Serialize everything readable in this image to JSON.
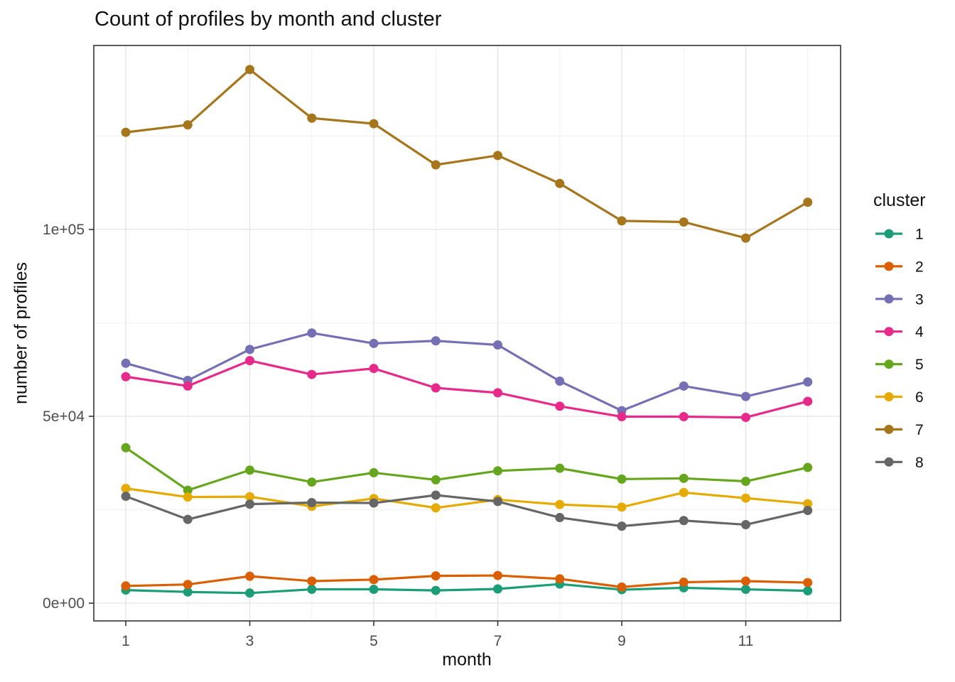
{
  "chart_data": {
    "type": "line",
    "title": "Count of profiles by month and cluster",
    "xlabel": "month",
    "ylabel": "number of profiles",
    "legend_title": "cluster",
    "legend_position": "right",
    "grid": "on",
    "marker": "circle",
    "x": [
      1,
      2,
      3,
      4,
      5,
      6,
      7,
      8,
      9,
      10,
      11,
      12
    ],
    "x_ticks": {
      "values": [
        1,
        3,
        5,
        7,
        9,
        11
      ],
      "labels": [
        "1",
        "3",
        "5",
        "7",
        "9",
        "11"
      ]
    },
    "x_minor_ticks": [
      2,
      4,
      6,
      8,
      10,
      12
    ],
    "y_ticks": {
      "values": [
        0,
        50000,
        100000
      ],
      "labels": [
        "0e+00",
        "5e+04",
        "1e+05"
      ]
    },
    "y_minor_ticks": [
      25000,
      75000,
      125000
    ],
    "xlim": [
      0.484,
      12.53
    ],
    "ylim": [
      -4753,
      149239
    ],
    "series": [
      {
        "name": "1",
        "color": "#1B9E77",
        "values": [
          3500,
          3000,
          2700,
          3700,
          3700,
          3400,
          3800,
          5100,
          3600,
          4100,
          3700,
          3300
        ]
      },
      {
        "name": "2",
        "color": "#D95F02",
        "values": [
          4600,
          5000,
          7200,
          5900,
          6300,
          7300,
          7400,
          6500,
          4300,
          5600,
          5900,
          5500
        ]
      },
      {
        "name": "3",
        "color": "#7570B3",
        "values": [
          64200,
          59600,
          67900,
          72300,
          69500,
          70200,
          69100,
          59400,
          51500,
          58100,
          55300,
          59200
        ]
      },
      {
        "name": "4",
        "color": "#E7298A",
        "values": [
          60600,
          58100,
          64900,
          61200,
          62800,
          57600,
          56300,
          52700,
          49900,
          49900,
          49700,
          54000
        ]
      },
      {
        "name": "5",
        "color": "#66A61E",
        "values": [
          41600,
          30200,
          35600,
          32400,
          34900,
          33000,
          35400,
          36100,
          33200,
          33400,
          32600,
          36300
        ]
      },
      {
        "name": "6",
        "color": "#E6AB02",
        "values": [
          30700,
          28400,
          28500,
          25900,
          28000,
          25500,
          27700,
          26400,
          25700,
          29600,
          28100,
          26600
        ]
      },
      {
        "name": "7",
        "color": "#A6761D",
        "values": [
          126000,
          128000,
          142800,
          129800,
          128300,
          117300,
          119800,
          112300,
          102300,
          102000,
          97700,
          107300
        ]
      },
      {
        "name": "8",
        "color": "#666666",
        "values": [
          28600,
          22400,
          26500,
          26900,
          26800,
          28900,
          27200,
          22900,
          20600,
          22100,
          21000,
          24800
        ]
      }
    ],
    "style": {
      "panel_border_color": "#343434",
      "major_grid_color": "#e3e3e3",
      "minor_grid_color": "#f0f0f0",
      "tick_color": "#343434",
      "tick_label_color": "#4d4d4d",
      "background_color": "#ffffff"
    }
  }
}
